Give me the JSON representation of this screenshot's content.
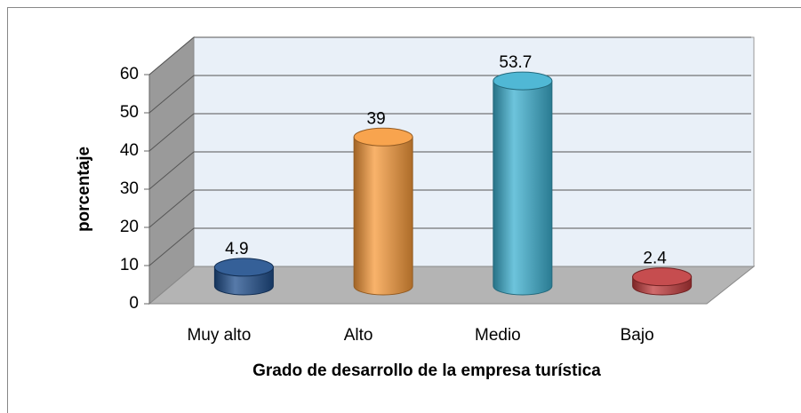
{
  "chart_data": {
    "type": "bar",
    "categories": [
      "Muy alto",
      "Alto",
      "Medio",
      "Bajo"
    ],
    "values": [
      4.9,
      39,
      53.7,
      2.4
    ],
    "colors": [
      "#1f4e8c",
      "#f79a3a",
      "#3cb0d0",
      "#c0393b"
    ],
    "ylim": [
      0,
      60
    ],
    "yticks": [
      0,
      10,
      20,
      30,
      40,
      50,
      60
    ],
    "grid": true,
    "y_label": "porcentaje",
    "x_label": "Grado de desarrollo de la empresa turística"
  }
}
